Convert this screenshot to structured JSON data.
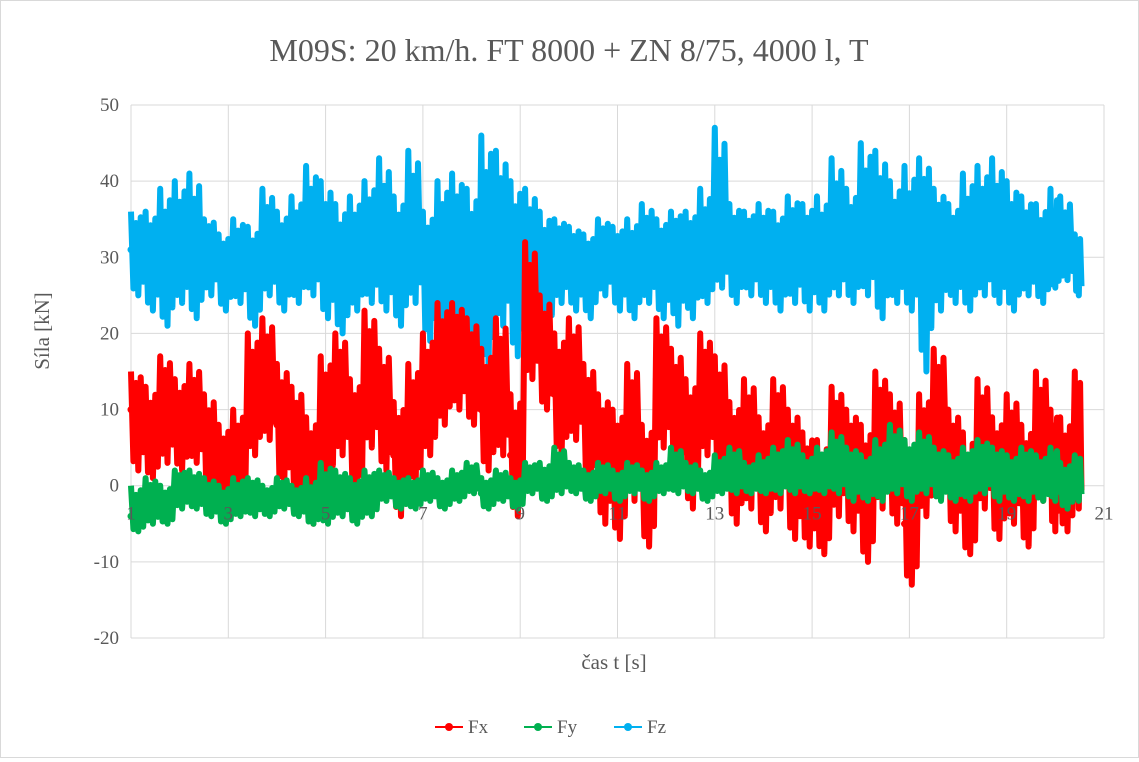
{
  "chart_data": {
    "type": "scatter",
    "title": "M09S: 20 km/h. FT 8000 + ZN 8/75, 4000 l, T",
    "xlabel": "čas t [s]",
    "ylabel": "Síla [kN]",
    "xlim": [
      1,
      21
    ],
    "ylim": [
      -20,
      50
    ],
    "x_ticks": [
      "1",
      "3",
      "5",
      "7",
      "9",
      "11",
      "13",
      "15",
      "17",
      "19",
      "21"
    ],
    "y_ticks": [
      "50",
      "40",
      "30",
      "20",
      "10",
      "0",
      "-10",
      "-20"
    ],
    "grid": true,
    "legend_position": "bottom",
    "series": [
      {
        "name": "Fx",
        "color": "#ff0000",
        "x": [
          1.0,
          1.3,
          1.6,
          1.9,
          2.2,
          2.5,
          2.8,
          3.1,
          3.4,
          3.7,
          4.0,
          4.3,
          4.6,
          4.9,
          5.2,
          5.5,
          5.8,
          6.1,
          6.4,
          6.7,
          7.0,
          7.3,
          7.6,
          7.9,
          8.2,
          8.5,
          8.8,
          9.1,
          9.4,
          9.7,
          10.0,
          10.3,
          10.6,
          10.9,
          11.2,
          11.5,
          11.8,
          12.1,
          12.4,
          12.7,
          13.0,
          13.3,
          13.6,
          13.9,
          14.2,
          14.5,
          14.8,
          15.1,
          15.4,
          15.7,
          16.0,
          16.3,
          16.6,
          16.9,
          17.2,
          17.5,
          17.8,
          18.1,
          18.4,
          18.7,
          19.0,
          19.3,
          19.6,
          19.9,
          20.1,
          20.4
        ],
        "values": [
          10,
          6,
          11,
          8,
          9,
          5,
          2,
          3,
          12,
          14,
          8,
          6,
          2,
          9,
          12,
          7,
          14,
          10,
          4,
          8,
          12,
          16,
          18,
          15,
          10,
          13,
          4,
          22,
          17,
          12,
          14,
          9,
          5,
          3,
          8,
          1,
          14,
          10,
          6,
          12,
          9,
          4,
          6,
          2,
          7,
          3,
          0,
          -2,
          6,
          3,
          -1,
          7,
          4,
          -5,
          5,
          10,
          3,
          -3,
          6,
          2,
          4,
          0,
          7,
          3,
          1,
          5
        ],
        "range_low": [
          2,
          1,
          3,
          2,
          3,
          -2,
          -4,
          -3,
          4,
          6,
          0,
          -2,
          -5,
          0,
          4,
          -1,
          5,
          2,
          -4,
          0,
          4,
          8,
          10,
          8,
          2,
          4,
          -4,
          14,
          10,
          4,
          6,
          0,
          -5,
          -7,
          -2,
          -8,
          5,
          2,
          -3,
          4,
          0,
          -5,
          -3,
          -6,
          -3,
          -7,
          -8,
          -9,
          -4,
          -6,
          -10,
          -3,
          -5,
          -13,
          -4,
          2,
          -6,
          -9,
          -3,
          -7,
          -5,
          -8,
          -2,
          -6,
          -6,
          -3
        ],
        "range_high": [
          15,
          13,
          17,
          14,
          16,
          12,
          8,
          10,
          20,
          22,
          16,
          13,
          9,
          17,
          20,
          14,
          23,
          18,
          11,
          16,
          20,
          24,
          24,
          22,
          18,
          22,
          12,
          32,
          25,
          20,
          22,
          16,
          12,
          10,
          16,
          8,
          22,
          18,
          14,
          20,
          17,
          11,
          14,
          9,
          14,
          10,
          7,
          6,
          13,
          10,
          8,
          15,
          12,
          6,
          12,
          18,
          10,
          7,
          14,
          9,
          12,
          8,
          15,
          10,
          9,
          15
        ]
      },
      {
        "name": "Fy",
        "color": "#00b050",
        "x": [
          1.0,
          1.3,
          1.6,
          1.9,
          2.2,
          2.5,
          2.8,
          3.1,
          3.4,
          3.7,
          4.0,
          4.3,
          4.6,
          4.9,
          5.2,
          5.5,
          5.8,
          6.1,
          6.4,
          6.7,
          7.0,
          7.3,
          7.6,
          7.9,
          8.2,
          8.5,
          8.8,
          9.1,
          9.4,
          9.7,
          10.0,
          10.3,
          10.6,
          10.9,
          11.2,
          11.5,
          11.8,
          12.1,
          12.4,
          12.7,
          13.0,
          13.3,
          13.6,
          13.9,
          14.2,
          14.5,
          14.8,
          15.1,
          15.4,
          15.7,
          16.0,
          16.3,
          16.6,
          16.9,
          17.2,
          17.5,
          17.8,
          18.1,
          18.4,
          18.7,
          19.0,
          19.3,
          19.6,
          19.9,
          20.1,
          20.4
        ],
        "values": [
          -4,
          -2,
          -3,
          0,
          -1,
          -2,
          -3,
          -2,
          -1,
          -2,
          -1,
          -2,
          -3,
          -2,
          -1,
          -2,
          -1,
          0,
          -1,
          -1,
          0,
          -1,
          0,
          1,
          -1,
          0,
          -1,
          1,
          0,
          2,
          1,
          0,
          1,
          0,
          1,
          0,
          1,
          2,
          1,
          0,
          1,
          2,
          1,
          1,
          2,
          2,
          1,
          2,
          3,
          2,
          1,
          2,
          3,
          2,
          3,
          2,
          1,
          2,
          3,
          2,
          1,
          2,
          1,
          2,
          0,
          1
        ],
        "range_low": [
          -6,
          -5,
          -5,
          -3,
          -3,
          -4,
          -5,
          -4,
          -4,
          -4,
          -3,
          -4,
          -5,
          -5,
          -4,
          -5,
          -4,
          -2,
          -3,
          -3,
          -2,
          -3,
          -2,
          -1,
          -3,
          -2,
          -3,
          -1,
          -2,
          -1,
          -1,
          -2,
          -1,
          -2,
          -1,
          -2,
          -1,
          -1,
          -1,
          -2,
          -1,
          -1,
          -1,
          -1,
          -1,
          -1,
          -1,
          -1,
          -1,
          -2,
          -2,
          -2,
          -1,
          -2,
          -1,
          -2,
          -2,
          -2,
          -1,
          -2,
          -2,
          -2,
          -2,
          -2,
          -3,
          -2
        ],
        "range_high": [
          0,
          1,
          0,
          2,
          2,
          1,
          0,
          1,
          1,
          0,
          1,
          0,
          1,
          3,
          2,
          1,
          2,
          2,
          1,
          1,
          2,
          1,
          2,
          3,
          1,
          2,
          1,
          3,
          3,
          5,
          3,
          2,
          3,
          2,
          3,
          2,
          3,
          5,
          3,
          2,
          4,
          5,
          3,
          4,
          5,
          6,
          4,
          5,
          7,
          5,
          4,
          6,
          8,
          6,
          7,
          5,
          4,
          5,
          6,
          5,
          4,
          5,
          4,
          5,
          3,
          4
        ]
      },
      {
        "name": "Fz",
        "color": "#00b0f0",
        "x": [
          1.0,
          1.3,
          1.6,
          1.9,
          2.2,
          2.5,
          2.8,
          3.1,
          3.4,
          3.7,
          4.0,
          4.3,
          4.6,
          4.9,
          5.2,
          5.5,
          5.8,
          6.1,
          6.4,
          6.7,
          7.0,
          7.3,
          7.6,
          7.9,
          8.2,
          8.5,
          8.8,
          9.1,
          9.4,
          9.7,
          10.0,
          10.3,
          10.6,
          10.9,
          11.2,
          11.5,
          11.8,
          12.1,
          12.4,
          12.7,
          13.0,
          13.3,
          13.6,
          13.9,
          14.2,
          14.5,
          14.8,
          15.1,
          15.4,
          15.7,
          16.0,
          16.3,
          16.6,
          16.9,
          17.2,
          17.5,
          17.8,
          18.1,
          18.4,
          18.7,
          19.0,
          19.3,
          19.6,
          19.9,
          20.1,
          20.4
        ],
        "values": [
          31,
          30,
          29,
          31,
          30,
          32,
          29,
          30,
          28,
          31,
          30,
          31,
          32,
          30,
          28,
          30,
          32,
          31,
          30,
          33,
          29,
          30,
          31,
          28,
          30,
          32,
          29,
          30,
          28,
          31,
          30,
          29,
          31,
          30,
          29,
          31,
          30,
          32,
          31,
          30,
          33,
          31,
          32,
          31,
          30,
          32,
          31,
          30,
          32,
          31,
          33,
          32,
          31,
          30,
          34,
          32,
          31,
          30,
          32,
          31,
          30,
          31,
          30,
          29,
          31,
          29
        ],
        "range_low": [
          25,
          23,
          21,
          24,
          22,
          25,
          23,
          24,
          21,
          25,
          23,
          24,
          25,
          22,
          20,
          23,
          24,
          23,
          21,
          24,
          19,
          19,
          17,
          14,
          15,
          21,
          17,
          22,
          20,
          24,
          23,
          22,
          25,
          23,
          22,
          24,
          22,
          21,
          22,
          24,
          26,
          24,
          25,
          24,
          23,
          24,
          23,
          23,
          25,
          24,
          25,
          22,
          24,
          23,
          15,
          23,
          24,
          23,
          25,
          24,
          23,
          25,
          24,
          26,
          27,
          25
        ],
        "range_high": [
          36,
          36,
          39,
          40,
          41,
          35,
          33,
          35,
          34,
          39,
          36,
          38,
          42,
          40,
          37,
          38,
          40,
          43,
          38,
          44,
          36,
          40,
          41,
          39,
          46,
          44,
          40,
          39,
          36,
          35,
          34,
          33,
          35,
          34,
          35,
          37,
          35,
          36,
          36,
          39,
          47,
          37,
          36,
          37,
          36,
          38,
          37,
          38,
          43,
          39,
          45,
          44,
          40,
          42,
          43,
          39,
          37,
          41,
          42,
          43,
          40,
          38,
          37,
          39,
          38,
          33
        ]
      }
    ]
  }
}
